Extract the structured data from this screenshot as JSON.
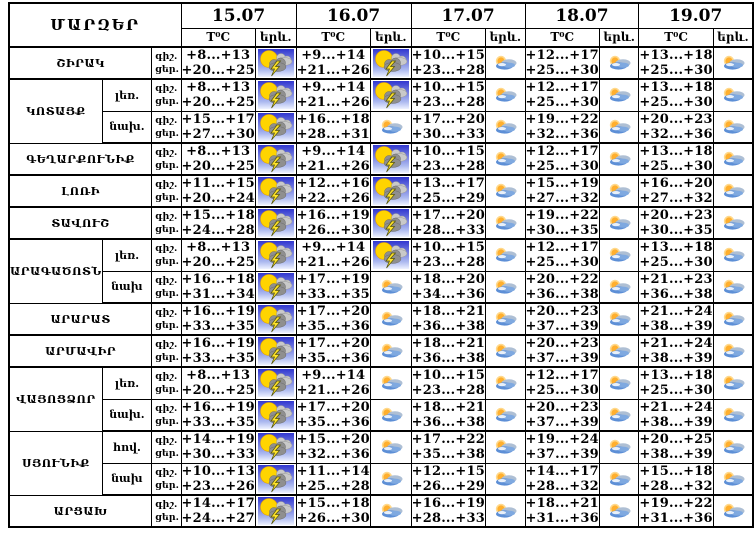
{
  "header": {
    "regions_label": "ՄԱՐԶԵՐ",
    "dates": [
      "15.07",
      "16.07",
      "17.07",
      "18.07",
      "19.07"
    ],
    "temp_label": "T⁰C",
    "phenomena_label": "երև."
  },
  "time_labels": {
    "night": "գիշ.",
    "day": "ցեր."
  },
  "icon_legend": {
    "thunder": "sun-cloud-lightning-icon",
    "cloudy": "sun-cloud-icon"
  },
  "colors": {
    "border": "#000000",
    "thunder_sky_top": "#3137cf",
    "thunder_sky_bottom": "#e8eeff",
    "sun": "#ffd400",
    "lightning": "#ffe32b",
    "cloud_blue": "#5d8fd6"
  },
  "regions": [
    {
      "name": "ՇԻՐԱԿ",
      "subrows": [
        {
          "label": null,
          "days": [
            {
              "night": "+8...+13",
              "day": "+20...+25",
              "icon": "thunder"
            },
            {
              "night": "+9...+14",
              "day": "+21...+26",
              "icon": "thunder"
            },
            {
              "night": "+10...+15",
              "day": "+23...+28",
              "icon": "cloudy"
            },
            {
              "night": "+12...+17",
              "day": "+25...+30",
              "icon": "cloudy"
            },
            {
              "night": "+13...+18",
              "day": "+25...+30",
              "icon": "cloudy"
            }
          ]
        }
      ]
    },
    {
      "name": "ԿՈՏԱՅՔ",
      "subrows": [
        {
          "label": "լեռ.",
          "days": [
            {
              "night": "+8...+13",
              "day": "+20...+25",
              "icon": "thunder"
            },
            {
              "night": "+9...+14",
              "day": "+21...+26",
              "icon": "thunder"
            },
            {
              "night": "+10...+15",
              "day": "+23...+28",
              "icon": "cloudy"
            },
            {
              "night": "+12...+17",
              "day": "+25...+30",
              "icon": "cloudy"
            },
            {
              "night": "+13...+18",
              "day": "+25...+30",
              "icon": "cloudy"
            }
          ]
        },
        {
          "label": "նախ.",
          "days": [
            {
              "night": "+15...+17",
              "day": "+27...+30",
              "icon": "thunder"
            },
            {
              "night": "+16...+18",
              "day": "+28...+31",
              "icon": "cloudy"
            },
            {
              "night": "+17...+20",
              "day": "+30...+33",
              "icon": "cloudy"
            },
            {
              "night": "+19...+22",
              "day": "+32...+36",
              "icon": "cloudy"
            },
            {
              "night": "+20...+23",
              "day": "+32...+36",
              "icon": "cloudy"
            }
          ]
        }
      ]
    },
    {
      "name": "ԳԵՂԱՐՔՈՒՆԻՔ",
      "subrows": [
        {
          "label": null,
          "days": [
            {
              "night": "+8...+13",
              "day": "+20...+25",
              "icon": "thunder"
            },
            {
              "night": "+9...+14",
              "day": "+21...+26",
              "icon": "thunder"
            },
            {
              "night": "+10...+15",
              "day": "+23...+28",
              "icon": "cloudy"
            },
            {
              "night": "+12...+17",
              "day": "+25...+30",
              "icon": "cloudy"
            },
            {
              "night": "+13...+18",
              "day": "+25...+30",
              "icon": "cloudy"
            }
          ]
        }
      ]
    },
    {
      "name": "ԼՈՌԻ",
      "subrows": [
        {
          "label": null,
          "days": [
            {
              "night": "+11...+15",
              "day": "+20...+24",
              "icon": "thunder"
            },
            {
              "night": "+12...+16",
              "day": "+22...+26",
              "icon": "thunder"
            },
            {
              "night": "+13...+17",
              "day": "+25...+29",
              "icon": "cloudy"
            },
            {
              "night": "+15...+19",
              "day": "+27...+32",
              "icon": "cloudy"
            },
            {
              "night": "+16...+20",
              "day": "+27...+32",
              "icon": "cloudy"
            }
          ]
        }
      ]
    },
    {
      "name": "ՏԱՎՈՒՇ",
      "subrows": [
        {
          "label": null,
          "days": [
            {
              "night": "+15...+18",
              "day": "+24...+28",
              "icon": "thunder"
            },
            {
              "night": "+16...+19",
              "day": "+26...+30",
              "icon": "thunder"
            },
            {
              "night": "+17...+20",
              "day": "+28...+33",
              "icon": "cloudy"
            },
            {
              "night": "+19...+22",
              "day": "+30...+35",
              "icon": "cloudy"
            },
            {
              "night": "+20...+23",
              "day": "+30...+35",
              "icon": "cloudy"
            }
          ]
        }
      ]
    },
    {
      "name": "ԱՐԱԳԱԾՈՏՆ",
      "subrows": [
        {
          "label": "լեռ.",
          "days": [
            {
              "night": "+8...+13",
              "day": "+20...+25",
              "icon": "thunder"
            },
            {
              "night": "+9...+14",
              "day": "+21...+26",
              "icon": "thunder"
            },
            {
              "night": "+10...+15",
              "day": "+23...+28",
              "icon": "cloudy"
            },
            {
              "night": "+12...+17",
              "day": "+25...+30",
              "icon": "cloudy"
            },
            {
              "night": "+13...+18",
              "day": "+25...+30",
              "icon": "cloudy"
            }
          ]
        },
        {
          "label": "նախ",
          "days": [
            {
              "night": "+16...+18",
              "day": "+31...+34",
              "icon": "thunder"
            },
            {
              "night": "+17...+19",
              "day": "+33...+35",
              "icon": "cloudy"
            },
            {
              "night": "+18...+20",
              "day": "+34...+36",
              "icon": "cloudy"
            },
            {
              "night": "+20...+22",
              "day": "+36...+38",
              "icon": "cloudy"
            },
            {
              "night": "+21...+23",
              "day": "+36...+38",
              "icon": "cloudy"
            }
          ]
        }
      ]
    },
    {
      "name": "ԱՐԱՐԱՏ",
      "subrows": [
        {
          "label": null,
          "days": [
            {
              "night": "+16...+19",
              "day": "+33...+35",
              "icon": "thunder"
            },
            {
              "night": "+17...+20",
              "day": "+35...+36",
              "icon": "cloudy"
            },
            {
              "night": "+18...+21",
              "day": "+36...+38",
              "icon": "cloudy"
            },
            {
              "night": "+20...+23",
              "day": "+37...+39",
              "icon": "cloudy"
            },
            {
              "night": "+21...+24",
              "day": "+38...+39",
              "icon": "cloudy"
            }
          ]
        }
      ]
    },
    {
      "name": "ԱՐՄԱՎԻՐ",
      "subrows": [
        {
          "label": null,
          "days": [
            {
              "night": "+16...+19",
              "day": "+33...+35",
              "icon": "thunder"
            },
            {
              "night": "+17...+20",
              "day": "+35...+36",
              "icon": "cloudy"
            },
            {
              "night": "+18...+21",
              "day": "+36...+38",
              "icon": "cloudy"
            },
            {
              "night": "+20...+23",
              "day": "+37...+39",
              "icon": "cloudy"
            },
            {
              "night": "+21...+24",
              "day": "+38...+39",
              "icon": "cloudy"
            }
          ]
        }
      ]
    },
    {
      "name": "ՎԱՅՈՑՁՈՐ",
      "subrows": [
        {
          "label": "լեռ.",
          "days": [
            {
              "night": "+8...+13",
              "day": "+20...+25",
              "icon": "thunder"
            },
            {
              "night": "+9...+14",
              "day": "+21...+26",
              "icon": "cloudy"
            },
            {
              "night": "+10...+15",
              "day": "+23...+28",
              "icon": "cloudy"
            },
            {
              "night": "+12...+17",
              "day": "+25...+30",
              "icon": "cloudy"
            },
            {
              "night": "+13...+18",
              "day": "+25...+30",
              "icon": "cloudy"
            }
          ]
        },
        {
          "label": "նախ.",
          "days": [
            {
              "night": "+16...+19",
              "day": "+33...+35",
              "icon": "thunder"
            },
            {
              "night": "+17...+20",
              "day": "+35...+36",
              "icon": "cloudy"
            },
            {
              "night": "+18...+21",
              "day": "+36...+38",
              "icon": "cloudy"
            },
            {
              "night": "+20...+23",
              "day": "+37...+39",
              "icon": "cloudy"
            },
            {
              "night": "+21...+24",
              "day": "+38...+39",
              "icon": "cloudy"
            }
          ]
        }
      ]
    },
    {
      "name": "ՍՅՈՒՆԻՔ",
      "subrows": [
        {
          "label": "հով.",
          "days": [
            {
              "night": "+14...+19",
              "day": "+30...+33",
              "icon": "thunder"
            },
            {
              "night": "+15...+20",
              "day": "+32...+36",
              "icon": "cloudy"
            },
            {
              "night": "+17...+22",
              "day": "+35...+38",
              "icon": "cloudy"
            },
            {
              "night": "+19...+24",
              "day": "+37...+39",
              "icon": "cloudy"
            },
            {
              "night": "+20...+25",
              "day": "+38...+39",
              "icon": "cloudy"
            }
          ]
        },
        {
          "label": "նախ",
          "days": [
            {
              "night": "+10...+13",
              "day": "+23...+26",
              "icon": "thunder"
            },
            {
              "night": "+11...+14",
              "day": "+25...+28",
              "icon": "cloudy"
            },
            {
              "night": "+12...+15",
              "day": "+26...+29",
              "icon": "cloudy"
            },
            {
              "night": "+14...+17",
              "day": "+28...+32",
              "icon": "cloudy"
            },
            {
              "night": "+15...+18",
              "day": "+28...+32",
              "icon": "cloudy"
            }
          ]
        }
      ]
    },
    {
      "name": "ԱՐՑԱԽ",
      "subrows": [
        {
          "label": null,
          "days": [
            {
              "night": "+14...+17",
              "day": "+24...+27",
              "icon": "thunder"
            },
            {
              "night": "+15...+18",
              "day": "+26...+30",
              "icon": "cloudy"
            },
            {
              "night": "+16...+19",
              "day": "+28...+33",
              "icon": "cloudy"
            },
            {
              "night": "+18...+21",
              "day": "+31...+36",
              "icon": "cloudy"
            },
            {
              "night": "+19...+22",
              "day": "+31...+36",
              "icon": "cloudy"
            }
          ]
        }
      ]
    }
  ]
}
